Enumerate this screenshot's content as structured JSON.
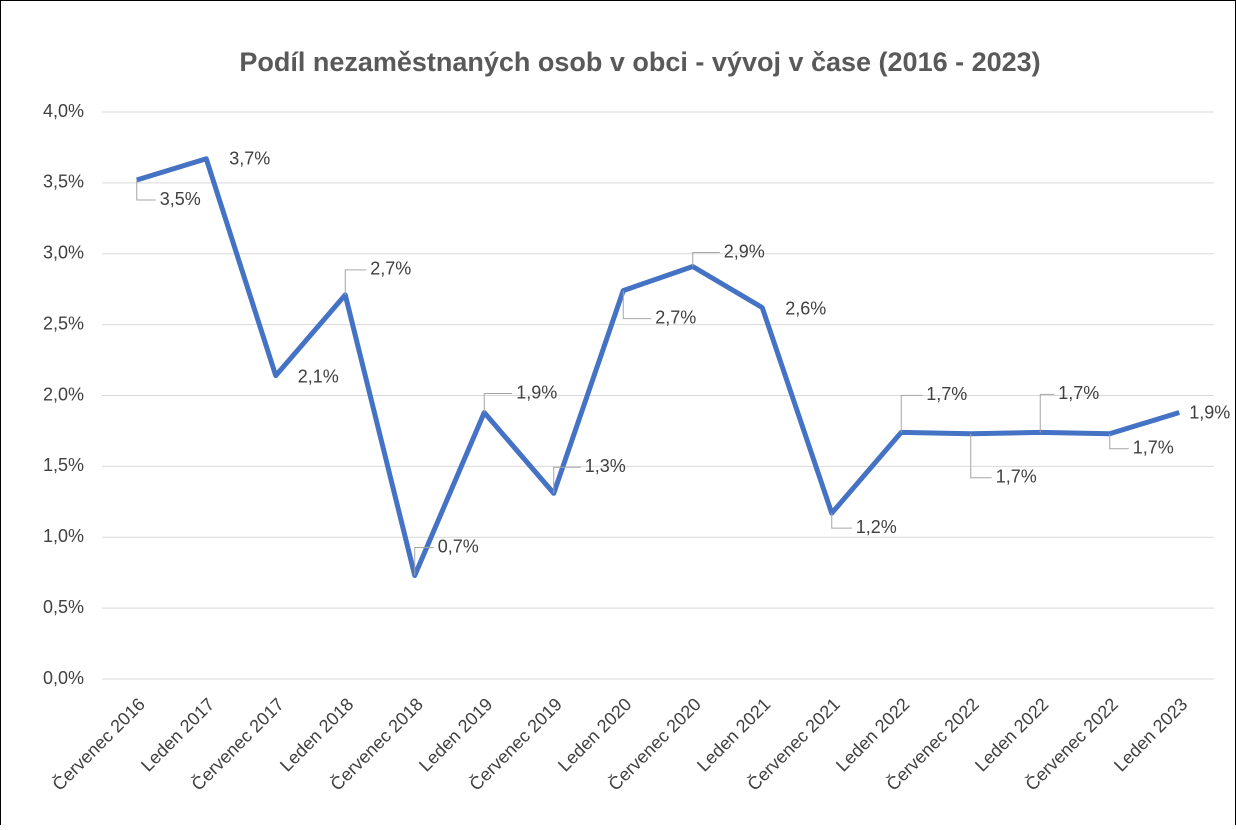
{
  "chart_data": {
    "type": "line",
    "title": "Podíl nezaměstnaných osob v obci - vývoj v čase (2016 - 2023)",
    "categories": [
      "Červenec 2016",
      "Leden 2017",
      "Červenec 2017",
      "Leden 2018",
      "Červenec 2018",
      "Leden 2019",
      "Červenec 2019",
      "Leden 2020",
      "Červenec 2020",
      "Leden 2021",
      "Červenec 2021",
      "Leden 2022",
      "Červenec 2022",
      "Leden 2022",
      "Červenec 2022",
      "Leden 2023"
    ],
    "series": [
      {
        "name": "Podíl nezaměstnaných osob",
        "color": "#4472c4",
        "values": [
          3.52,
          3.67,
          2.14,
          2.71,
          0.73,
          1.88,
          1.31,
          2.74,
          2.91,
          2.62,
          1.17,
          1.74,
          1.73,
          1.74,
          1.73,
          1.88
        ],
        "value_labels": [
          "3,5%",
          "3,7%",
          "2,1%",
          "2,7%",
          "0,7%",
          "1,9%",
          "1,3%",
          "2,7%",
          "2,9%",
          "2,6%",
          "1,2%",
          "1,7%",
          "1,7%",
          "1,7%",
          "1,7%",
          "1,9%"
        ]
      }
    ],
    "ylim": [
      0,
      4
    ],
    "yticks": [
      {
        "value": 0,
        "label": "0,0%"
      },
      {
        "value": 0.5,
        "label": "0,5%"
      },
      {
        "value": 1,
        "label": "1,0%"
      },
      {
        "value": 1.5,
        "label": "1,5%"
      },
      {
        "value": 2,
        "label": "2,0%"
      },
      {
        "value": 2.5,
        "label": "2,5%"
      },
      {
        "value": 3,
        "label": "3,0%"
      },
      {
        "value": 3.5,
        "label": "3,5%"
      },
      {
        "value": 4,
        "label": "4,0%"
      }
    ],
    "grid": true
  }
}
